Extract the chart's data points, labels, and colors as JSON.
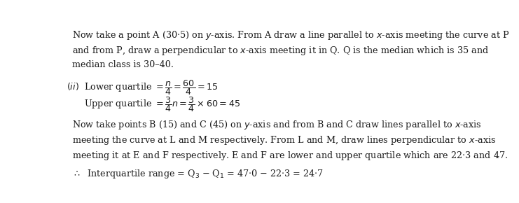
{
  "background_color": "#ffffff",
  "figsize": [
    7.41,
    2.9
  ],
  "dpi": 100,
  "font_family": "DejaVu Serif",
  "font_size": 9.2,
  "text_color": "#1a1a1a",
  "line1": "Now take a point A (30·5) on y-axis. From A draw a line parallel to x-axis meeting the curve at P",
  "line2": "and from P, draw a perpendicular to x-axis meeting it in Q. Q is the median which is 35 and",
  "line3": "median class is 30–40.",
  "line4": "Now take points B (15) and C (45) on y-axis and from B and C draw lines parallel to x-axis",
  "line5": "meeting the curve at L and M respectively. From L and M, draw lines perpendicular to x-axis",
  "line6": "meeting it at E and F respectively. E and F are lower and upper quartile which are 22·3 and 47.",
  "line7": "∴  Interquartile range = Q₃ − Q₁ = 47·0 − 22·3 = 24·7"
}
